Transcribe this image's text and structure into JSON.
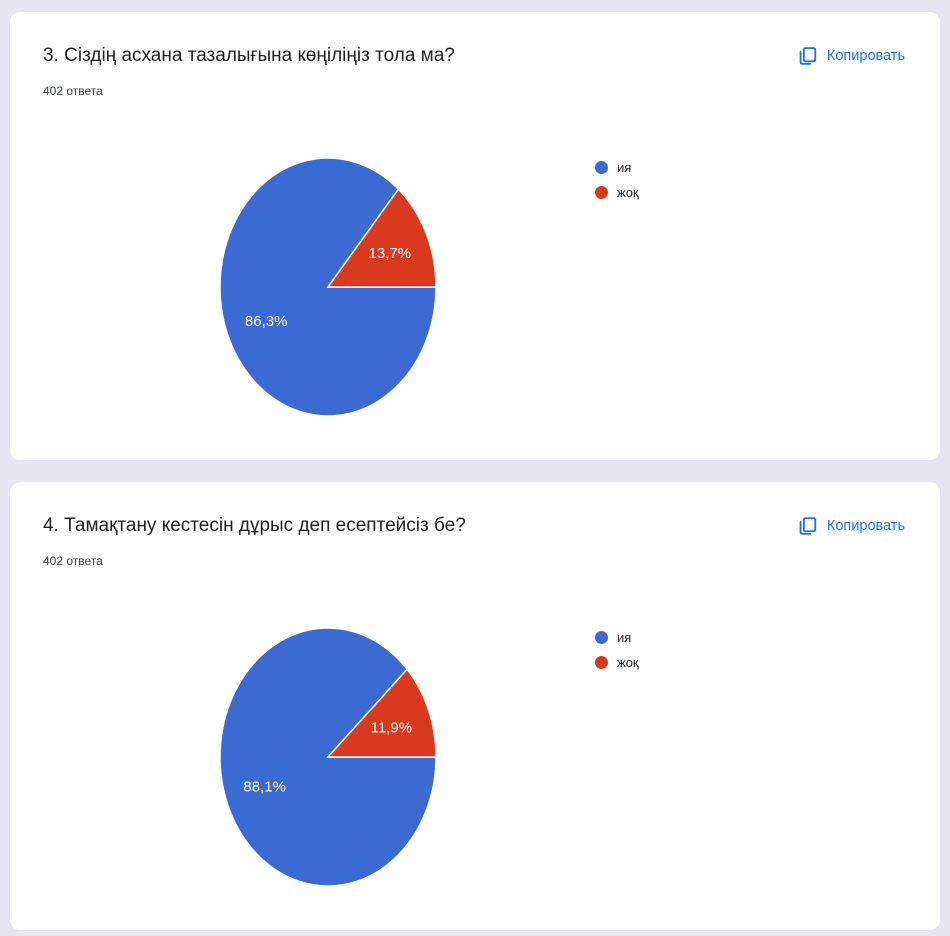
{
  "colors": {
    "page_background": "#e9e6f4",
    "card_background": "#ffffff",
    "link_blue": "#1a73e8",
    "series_blue": "#3b6bd2",
    "series_red": "#d93a1e"
  },
  "cards": [
    {
      "title": "3. Сіздің асхана тазалығына көңіліңіз тола ма?",
      "responses": "402 ответа",
      "copy_label": "Копировать"
    },
    {
      "title": "4. Тамақтану кестесін дұрыс деп есептейсіз бе?",
      "responses": "402 ответа",
      "copy_label": "Копировать"
    }
  ],
  "chart_data": [
    {
      "type": "pie",
      "title": "3. Сіздің асхана тазалығына көңіліңіз тола ма?",
      "categories": [
        "ия",
        "жоқ"
      ],
      "values": [
        86.3,
        13.7
      ],
      "labels": [
        "86,3%",
        "13,7%"
      ],
      "colors": [
        "#3b6bd2",
        "#d93a1e"
      ],
      "legend_position": "right",
      "start_angle_deg": 0,
      "direction": "clockwise"
    },
    {
      "type": "pie",
      "title": "4. Тамақтану кестесін дұрыс деп есептейсіз бе?",
      "categories": [
        "ия",
        "жоқ"
      ],
      "values": [
        88.1,
        11.9
      ],
      "labels": [
        "88,1%",
        "11,9%"
      ],
      "colors": [
        "#3b6bd2",
        "#d93a1e"
      ],
      "legend_position": "right",
      "start_angle_deg": 0,
      "direction": "clockwise"
    }
  ]
}
